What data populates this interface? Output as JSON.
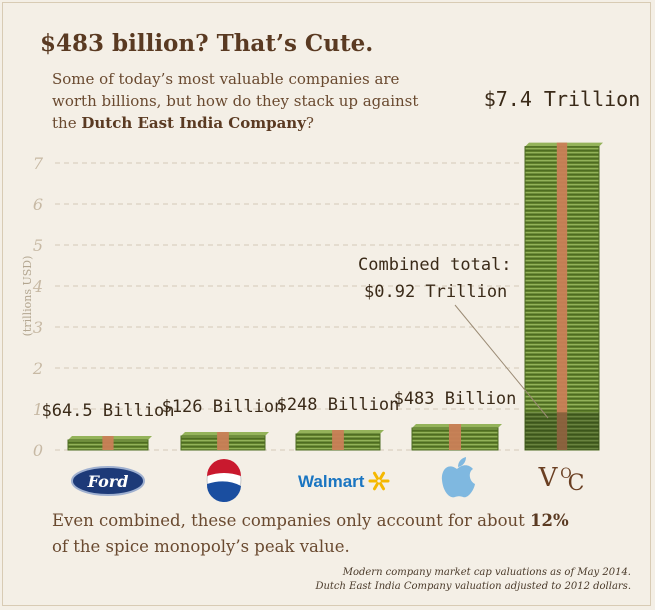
{
  "header": {
    "title": "$483 billion? That’s Cute.",
    "subtitle_text": "Some of today’s most valuable companies are worth billions, but how do they stack up against the",
    "subtitle_bold": "Dutch East India Company",
    "subtitle_end": "?"
  },
  "footer": {
    "text": "Even combined, these companies only account for about",
    "percent": "12%",
    "text_end": "of the spice monopoly’s peak value."
  },
  "notes": {
    "line1": "Modern company market cap valuations as of May 2014.",
    "line2": "Dutch East India Company valuation adjusted to 2012 dollars."
  },
  "combined_label": {
    "line1": "Combined total:",
    "line2": "$0.92 Trillion",
    "value": 0.92
  },
  "chart_data": {
    "type": "bar",
    "title": "$483 billion? That’s Cute.",
    "xlabel": "",
    "ylabel": "(trillions USD)",
    "ylim": [
      0,
      7.4
    ],
    "yticks": [
      "0",
      "1",
      "2",
      "3",
      "4",
      "5",
      "6",
      "7"
    ],
    "categories": [
      "Ford",
      "Pepsi",
      "Walmart",
      "Apple",
      "Dutch East India Company"
    ],
    "logos": [
      "Ford",
      "",
      "Walmart",
      "",
      "VOC"
    ],
    "values": [
      0.0645,
      0.126,
      0.248,
      0.483,
      7.4
    ],
    "value_labels": [
      "$64.5 Billion",
      "$126 Billion",
      "$248 Billion",
      "$483 Billion",
      "$7.4 Trillion"
    ],
    "colors": {
      "bill_dark": "#4d6b22",
      "bill_mid": "#6e8f34",
      "bill_light": "#94b35a",
      "band": "#c97f57",
      "grid": "#d5cab8",
      "ford_blue": "#1d3a78",
      "pepsi_red": "#c9192e",
      "pepsi_blue": "#1a4ea0",
      "walmart_blue": "#1a75c1",
      "walmart_yellow": "#f5b800",
      "apple_blue": "#7fb8e0",
      "voc_brown": "#6a3f22"
    }
  }
}
